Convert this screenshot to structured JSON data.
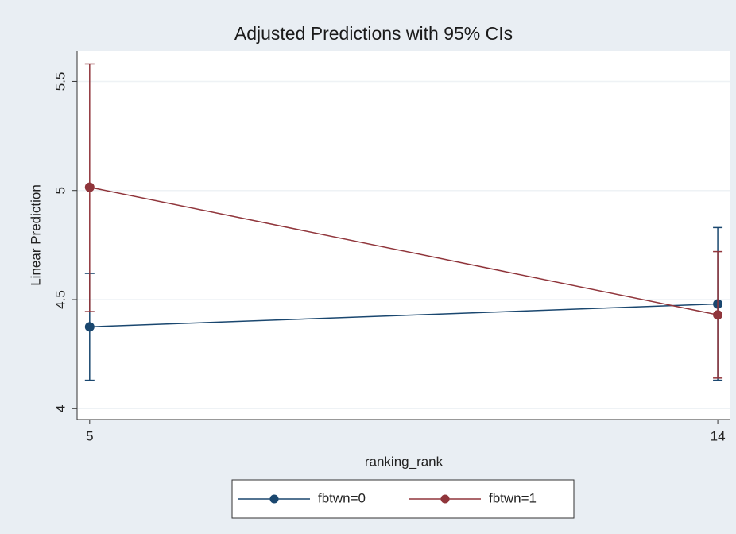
{
  "chart_data": {
    "type": "line",
    "title": "Adjusted Predictions with 95% CIs",
    "x_label": "ranking_rank",
    "y_label": "Linear Prediction",
    "x": [
      5,
      14
    ],
    "series": [
      {
        "name": "fbtwn=0",
        "color": "#1a476f",
        "values": [
          4.375,
          4.48
        ],
        "ci_lower": [
          4.13,
          4.13
        ],
        "ci_upper": [
          4.62,
          4.83
        ]
      },
      {
        "name": "fbtwn=1",
        "color": "#90353b",
        "values": [
          5.015,
          4.43
        ],
        "ci_lower": [
          4.445,
          4.14
        ],
        "ci_upper": [
          5.58,
          4.72
        ]
      }
    ],
    "xlim": [
      4.82,
      14.17
    ],
    "xticks": [
      5,
      14
    ],
    "ylim": [
      3.95,
      5.64
    ],
    "yticks": [
      4,
      4.5,
      5,
      5.5
    ],
    "grid": true,
    "legend": "bottom"
  }
}
